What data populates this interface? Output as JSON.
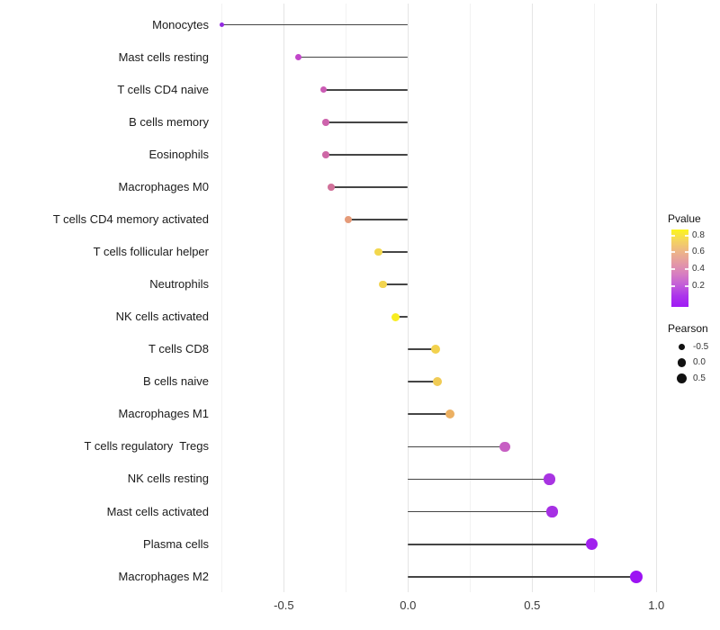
{
  "chart_data": {
    "type": "lollipop",
    "orientation": "horizontal",
    "title": "",
    "xlabel": "",
    "ylabel": "",
    "xlim": [
      -0.784,
      1.028
    ],
    "baseline_x": 0,
    "grid": "vertical-only",
    "x_ticks": [
      {
        "value": -0.5,
        "label": "-0.5"
      },
      {
        "value": 0.0,
        "label": "0.0"
      },
      {
        "value": 0.5,
        "label": "0.5"
      },
      {
        "value": 1.0,
        "label": "1.0"
      }
    ],
    "gridlines": [
      {
        "value": -0.75,
        "major": false
      },
      {
        "value": -0.5,
        "major": true
      },
      {
        "value": -0.25,
        "major": false
      },
      {
        "value": 0.0,
        "major": true
      },
      {
        "value": 0.25,
        "major": false
      },
      {
        "value": 0.5,
        "major": true
      },
      {
        "value": 0.75,
        "major": false
      },
      {
        "value": 1.0,
        "major": true
      }
    ],
    "size_encoding": "Pearson",
    "color_encoding": "Pvalue",
    "points": [
      {
        "label": "Monocytes",
        "pearson": -0.75,
        "color": "#9329E1",
        "size": 5.4
      },
      {
        "label": "Mast cells resting",
        "pearson": -0.44,
        "color": "#C246CA",
        "size": 7.0
      },
      {
        "label": "T cells CD4 naive",
        "pearson": -0.34,
        "color": "#CB5BB4",
        "size": 7.5
      },
      {
        "label": "B cells memory",
        "pearson": -0.33,
        "color": "#CD63AC",
        "size": 7.6
      },
      {
        "label": "Eosinophils",
        "pearson": -0.33,
        "color": "#CE67A6",
        "size": 7.6
      },
      {
        "label": "Macrophages M0",
        "pearson": -0.31,
        "color": "#D1719A",
        "size": 7.7
      },
      {
        "label": "T cells CD4 memory activated",
        "pearson": -0.24,
        "color": "#E59B79",
        "size": 8.1
      },
      {
        "label": "T cells follicular helper",
        "pearson": -0.12,
        "color": "#F2D74D",
        "size": 8.7
      },
      {
        "label": "Neutrophils",
        "pearson": -0.1,
        "color": "#F2D44F",
        "size": 8.8
      },
      {
        "label": "NK cells activated",
        "pearson": -0.05,
        "color": "#F8ED21",
        "size": 9.0
      },
      {
        "label": "T cells CD8",
        "pearson": 0.11,
        "color": "#F2D14D",
        "size": 9.9
      },
      {
        "label": "B cells naive",
        "pearson": 0.12,
        "color": "#F0CB55",
        "size": 9.9
      },
      {
        "label": "Macrophages M1",
        "pearson": 0.17,
        "color": "#ECB062",
        "size": 10.2
      },
      {
        "label": "T cells regulatory  Tregs",
        "pearson": 0.39,
        "color": "#C75FC3",
        "size": 11.3
      },
      {
        "label": "NK cells resting",
        "pearson": 0.57,
        "color": "#A834E2",
        "size": 12.3
      },
      {
        "label": "Mast cells activated",
        "pearson": 0.58,
        "color": "#A630E4",
        "size": 12.3
      },
      {
        "label": "Plasma cells",
        "pearson": 0.74,
        "color": "#A121EE",
        "size": 13.1
      },
      {
        "label": "Macrophages M2",
        "pearson": 0.92,
        "color": "#9C13F3",
        "size": 14.1
      }
    ],
    "colors": {
      "background": "#FFFFFF",
      "segment": "#454545",
      "grid_major": "#E5E5E5",
      "grid_minor": "#F2F2F2",
      "legend_dot": "#111111"
    }
  },
  "legend": {
    "pvalue": {
      "title": "Pvalue",
      "ticks": [
        "0.8",
        "0.6",
        "0.4",
        "0.2"
      ],
      "gradient_stops": [
        "#FCF51C",
        "#F4D45F",
        "#EDB587",
        "#E49AA4",
        "#D77FC0",
        "#C35ED8",
        "#AC34EB",
        "#A01BF5"
      ]
    },
    "pearson": {
      "title": "Pearson",
      "items": [
        {
          "label": "-0.5",
          "size": 7.0
        },
        {
          "label": "0.0",
          "size": 9.5
        },
        {
          "label": "0.5",
          "size": 11.5
        }
      ]
    }
  }
}
